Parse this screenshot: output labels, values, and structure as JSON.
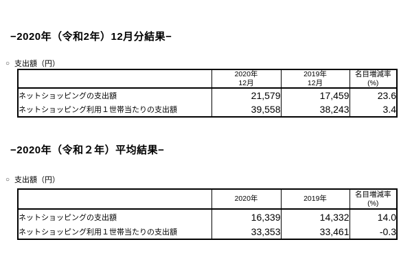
{
  "colors": {
    "background": "#ffffff",
    "text": "#000000",
    "border": "#000000"
  },
  "sections": [
    {
      "heading": "−2020年（令和2年）12月分結果−",
      "marker": "○",
      "label": "支出額（円）",
      "table": {
        "headers": [
          {
            "line1": "",
            "line2": ""
          },
          {
            "line1": "2020年",
            "line2": "12月"
          },
          {
            "line1": "2019年",
            "line2": "12月"
          },
          {
            "line1": "名目増減率",
            "line2": "(%)"
          }
        ],
        "rows": [
          {
            "label": "ネットショッピングの支出額",
            "v2020": "21,579",
            "v2019": "17,459",
            "rate": "23.6"
          },
          {
            "label": "ネットショッピング利用１世帯当たりの支出額",
            "v2020": "39,558",
            "v2019": "38,243",
            "rate": "3.4"
          }
        ]
      }
    },
    {
      "heading": "−2020年（令和２年）平均結果−",
      "marker": "○",
      "label": "支出額（円）",
      "table": {
        "headers": [
          {
            "line1": "",
            "line2": ""
          },
          {
            "line1": "2020年",
            "line2": ""
          },
          {
            "line1": "2019年",
            "line2": ""
          },
          {
            "line1": "名目増減率",
            "line2": "(%)"
          }
        ],
        "rows": [
          {
            "label": "ネットショッピングの支出額",
            "v2020": "16,339",
            "v2019": "14,332",
            "rate": "14.0"
          },
          {
            "label": "ネットショッピング利用１世帯当たりの支出額",
            "v2020": "33,353",
            "v2019": "33,461",
            "rate": "-0.3"
          }
        ]
      }
    }
  ]
}
